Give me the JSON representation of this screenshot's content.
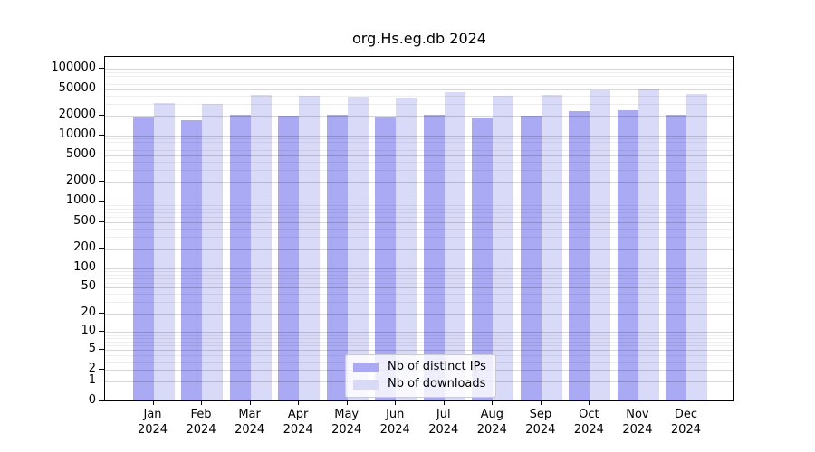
{
  "chart_data": {
    "type": "bar",
    "title": "org.Hs.eg.db 2024",
    "categories": [
      "Jan",
      "Feb",
      "Mar",
      "Apr",
      "May",
      "Jun",
      "Jul",
      "Aug",
      "Sep",
      "Oct",
      "Nov",
      "Dec"
    ],
    "year_label": "2024",
    "series": [
      {
        "name": "Nb of distinct IPs",
        "color": "#a9a9f4",
        "values": [
          18500,
          16700,
          19700,
          19300,
          19900,
          18900,
          19700,
          18300,
          19100,
          22400,
          23000,
          20100
        ]
      },
      {
        "name": "Nb of downloads",
        "color": "#d9d9f8",
        "values": [
          30000,
          29200,
          40000,
          38300,
          37500,
          36300,
          43000,
          38000,
          40000,
          47000,
          48500,
          41000
        ]
      }
    ],
    "yscale": "log1p",
    "yticks": [
      0,
      1,
      2,
      5,
      10,
      20,
      50,
      100,
      200,
      500,
      1000,
      2000,
      5000,
      10000,
      20000,
      50000,
      100000
    ],
    "yminorticks": [
      3,
      4,
      6,
      7,
      8,
      9,
      30,
      40,
      60,
      70,
      80,
      90,
      300,
      400,
      600,
      700,
      800,
      900,
      3000,
      4000,
      6000,
      7000,
      8000,
      9000,
      30000,
      40000,
      60000,
      70000,
      80000,
      90000
    ],
    "ylim": [
      0,
      152000
    ],
    "xlabel": "",
    "ylabel": "",
    "grid": "horizontal",
    "legend_position": "inside-bottom-center",
    "colors": {
      "distinct_ips_bar": "#a9a9f4",
      "downloads_bar": "#d9d9f8",
      "major_grid": "#d6d6d6",
      "minor_grid": "#ededed",
      "axis": "#000000",
      "background": "#ffffff"
    }
  }
}
